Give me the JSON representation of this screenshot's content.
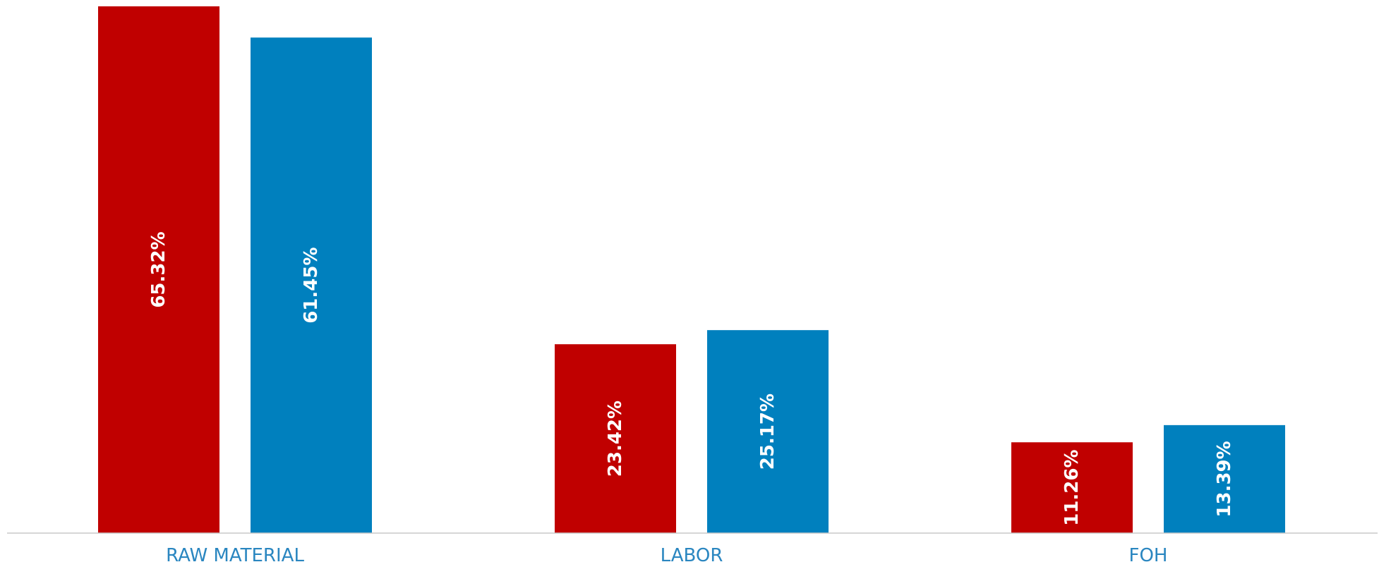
{
  "chart_data": {
    "type": "bar",
    "categories": [
      "RAW MATERIAL",
      "LABOR",
      "FOH"
    ],
    "series": [
      {
        "values": [
          65.32,
          23.42,
          11.26
        ],
        "labels": [
          "65.32%",
          "23.42%",
          "11.26%"
        ],
        "color": "#c00000"
      },
      {
        "values": [
          61.45,
          25.17,
          13.39
        ],
        "labels": [
          "61.45%",
          "25.17%",
          "13.39%"
        ],
        "color": "#0080be"
      }
    ],
    "unit": "%",
    "ylim": [
      0,
      65.32
    ],
    "grid": false,
    "legend": "none",
    "category_label_color": "#2a86c0",
    "axis_color": "#c8c8c8"
  }
}
